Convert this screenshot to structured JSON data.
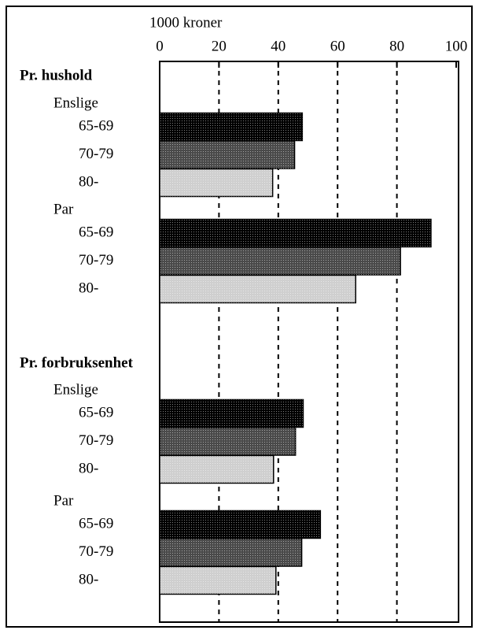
{
  "chart_data": {
    "type": "bar",
    "orientation": "horizontal",
    "x_label": "1000 kroner",
    "xlim": [
      0,
      100
    ],
    "xticks": [
      0,
      20,
      40,
      60,
      80,
      100
    ],
    "grid": true,
    "colors": [
      "#000000",
      "#4a4a4a",
      "#cfcfcf"
    ],
    "groups": [
      {
        "name": "Pr. hushold",
        "subgroups": [
          {
            "name": "Enslige",
            "categories": [
              "65-69",
              "70-79",
              "80-"
            ],
            "values": [
              48.1,
              45.5,
              38.1
            ]
          },
          {
            "name": "Par",
            "categories": [
              "65-69",
              "70-79",
              "80-"
            ],
            "values": [
              91.5,
              81.2,
              66.1
            ]
          }
        ]
      },
      {
        "name": "Pr. forbruksenhet",
        "subgroups": [
          {
            "name": "Enslige",
            "categories": [
              "65-69",
              "70-79",
              "80-"
            ],
            "values": [
              48.4,
              45.8,
              38.4
            ]
          },
          {
            "name": "Par",
            "categories": [
              "65-69",
              "70-79",
              "80-"
            ],
            "values": [
              54.2,
              47.9,
              39.2
            ]
          }
        ]
      }
    ]
  }
}
